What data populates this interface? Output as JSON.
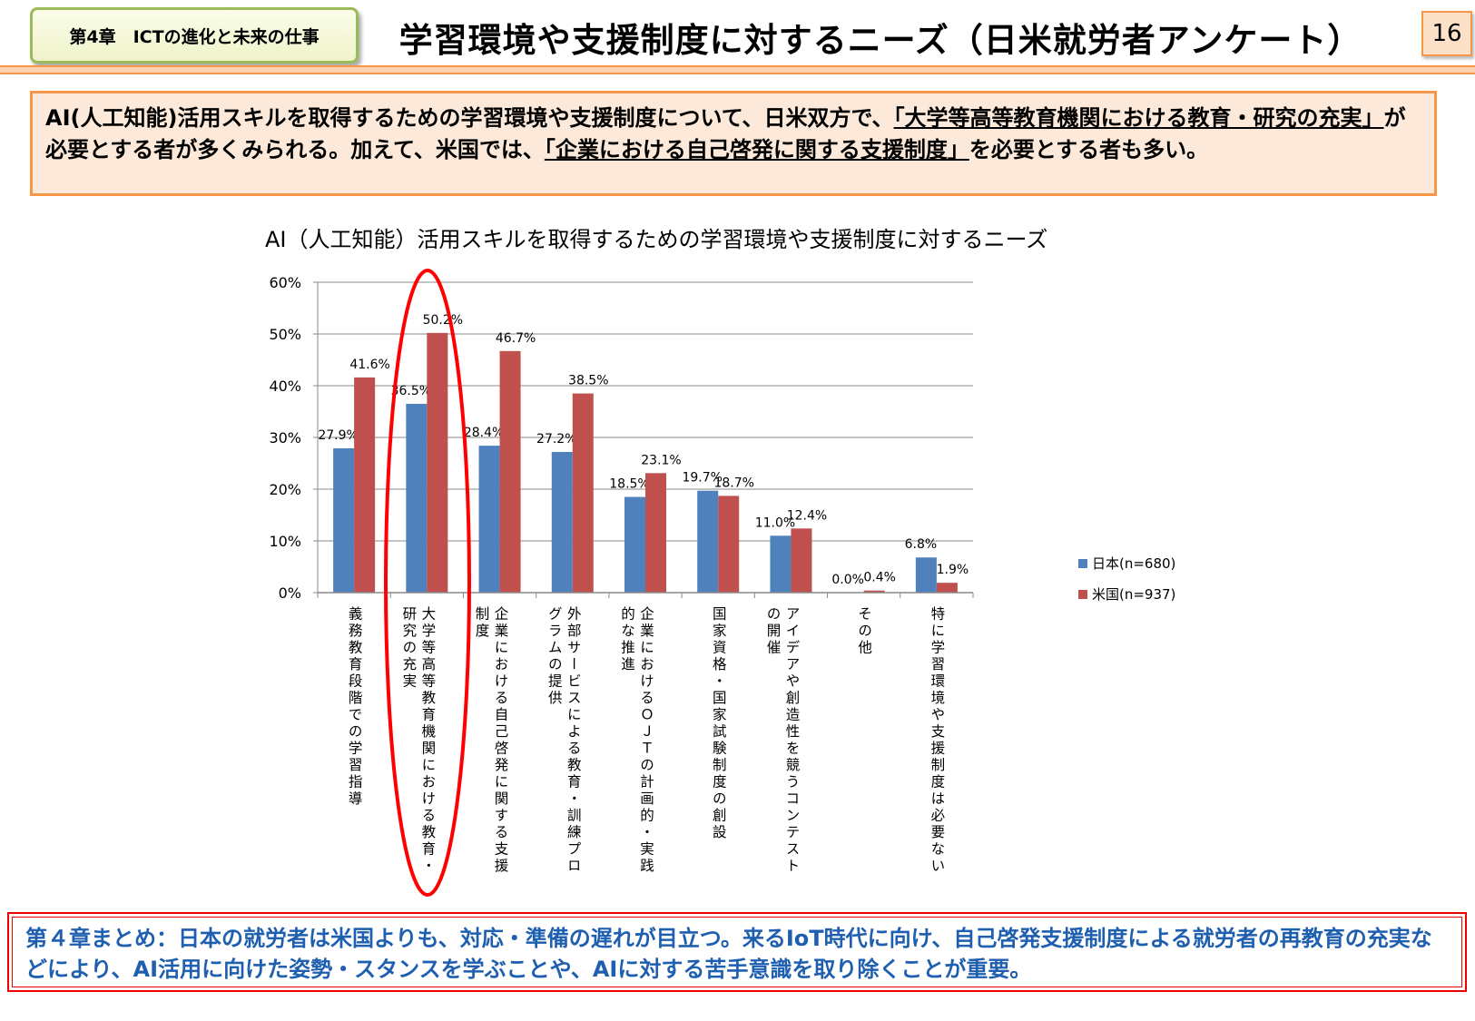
{
  "header": {
    "chapter_badge": "第4章　ICTの進化と未来の仕事",
    "title": "学習環境や支援制度に対するニーズ（日米就労者アンケート）",
    "page_number": "16"
  },
  "summary": {
    "part1": "AI(人工知能)活用スキルを取得するための学習環境や支援制度について、日米双方で、",
    "highlight1": "「大学等高等教育機関における教育・研究の充実」",
    "part2": "が必要とする者が多くみられる。加えて、米国では、",
    "highlight2": "「企業における自己啓発に関する支援制度」",
    "part3": "を必要とする者も多い。"
  },
  "chart_data": {
    "type": "bar",
    "title": "AI（人工知能）活用スキルを取得するための学習環境や支援制度に対するニーズ",
    "categories": [
      [
        "義務教育段階での学習指導"
      ],
      [
        "大学等高等教育機関における教育・",
        "研究の充実"
      ],
      [
        "企業における自己啓発に関する支援",
        "制度"
      ],
      [
        "外部サービスによる教育・訓練プロ",
        "グラムの提供"
      ],
      [
        "企業におけるＯＪＴの計画的・実践",
        "的な推進"
      ],
      [
        "国家資格・国家試験制度の創設"
      ],
      [
        "アイデアや創造性を競うコンテスト",
        "の開催"
      ],
      [
        "その他"
      ],
      [
        "特に学習環境や支援制度は必要ない"
      ]
    ],
    "series": [
      {
        "name": "日本(n=680)",
        "color": "#4F81BD",
        "values": [
          27.9,
          36.5,
          28.4,
          27.2,
          18.5,
          19.7,
          11.0,
          0.0,
          6.8
        ]
      },
      {
        "name": "米国(n=937)",
        "color": "#C0504D",
        "values": [
          41.6,
          50.2,
          46.7,
          38.5,
          23.1,
          18.7,
          12.4,
          0.4,
          1.9
        ]
      }
    ],
    "ylim": [
      0,
      60
    ],
    "yticks": [
      "0%",
      "10%",
      "20%",
      "30%",
      "40%",
      "50%",
      "60%"
    ],
    "grid": true,
    "legend": "right",
    "highlight": "red ellipse around category 2"
  },
  "footer": {
    "text": "第４章まとめ：日本の就労者は米国よりも、対応・準備の遅れが目立つ。来るIoT時代に向け、自己啓発支援制度による就労者の再教育の充実などにより、AI活用に向けた姿勢・スタンスを学ぶことや、AIに対する苦手意識を取り除くことが重要。"
  }
}
